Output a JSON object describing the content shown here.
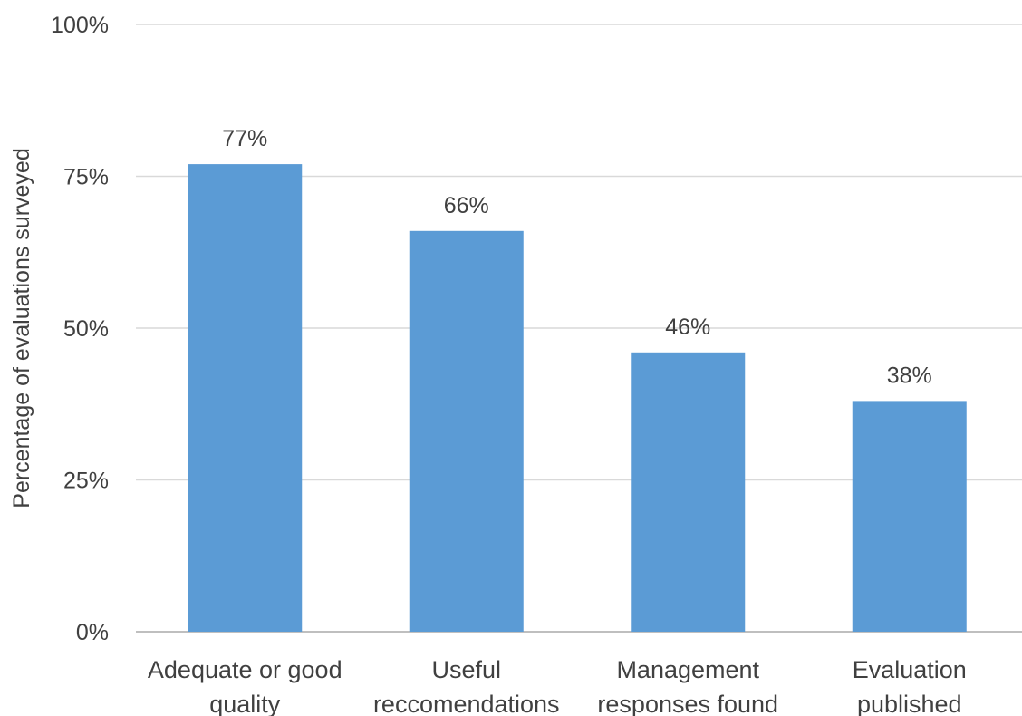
{
  "chart_data": {
    "type": "bar",
    "title": "",
    "xlabel": "",
    "ylabel": "Percentage of evaluations surveyed",
    "ylim": [
      0,
      100
    ],
    "yticks": [
      "0%",
      "25%",
      "50%",
      "75%",
      "100%"
    ],
    "ytick_values": [
      0,
      25,
      50,
      75,
      100
    ],
    "categories": [
      [
        "Adequate or good",
        "quality"
      ],
      [
        "Useful",
        "reccomendations"
      ],
      [
        "Management",
        "responses found"
      ],
      [
        "Evaluation",
        "published"
      ]
    ],
    "values": [
      77,
      66,
      46,
      38
    ],
    "data_labels": [
      "77%",
      "66%",
      "46%",
      "38%"
    ],
    "grid": true,
    "legend": "none",
    "colors": {
      "bar": "#5b9bd5",
      "grid": "#d9d9d9",
      "axis": "#bfbfbf",
      "text": "#404040"
    }
  }
}
